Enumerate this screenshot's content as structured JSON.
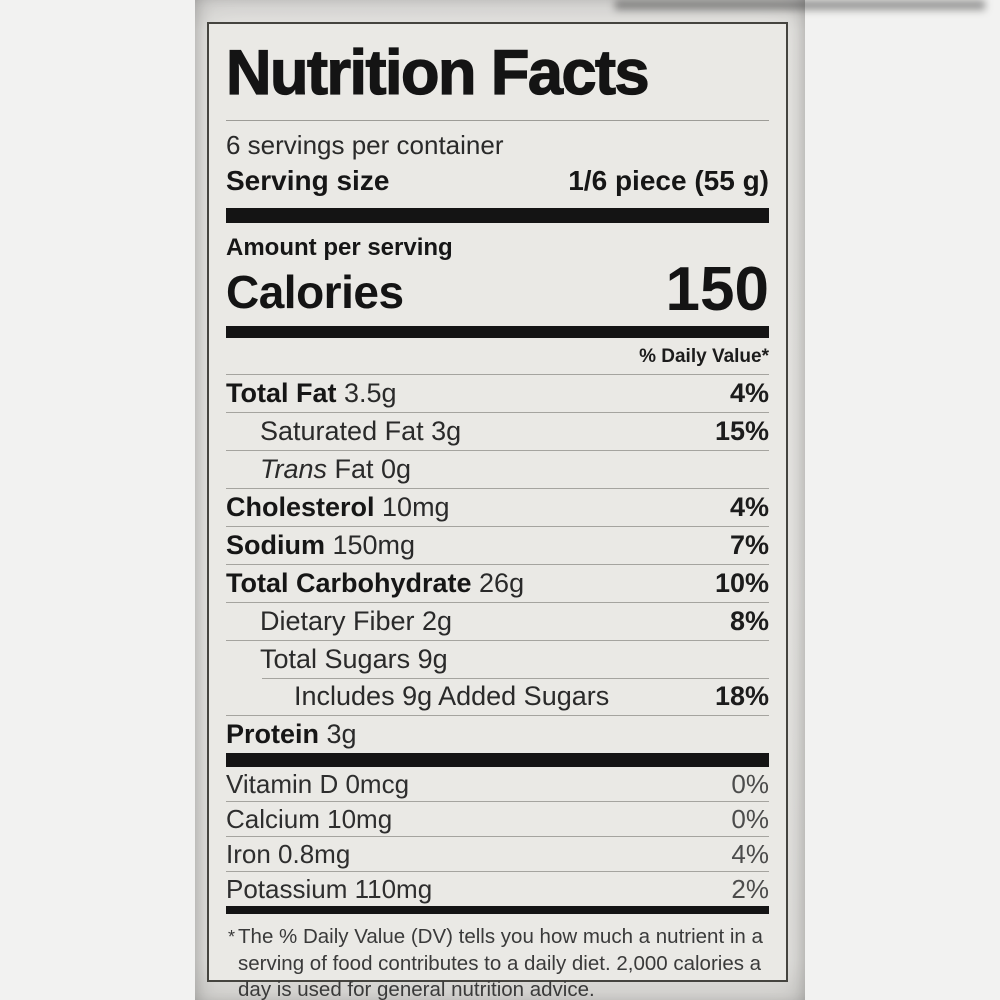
{
  "label": {
    "title": "Nutrition Facts",
    "servings_per_container": "6 servings per container",
    "serving_size_label": "Serving size",
    "serving_size_value": "1/6 piece (55 g)",
    "amount_per_serving": "Amount per serving",
    "calories_label": "Calories",
    "calories_value": "150",
    "daily_value_header": "% Daily Value*",
    "nutrients": [
      {
        "bold": "Total Fat",
        "rest": " 3.5g",
        "dv": "4%"
      },
      {
        "rest": "Saturated Fat 3g",
        "dv": "15%"
      },
      {
        "italic": "Trans",
        "rest": " Fat 0g",
        "dv": ""
      },
      {
        "bold": "Cholesterol",
        "rest": " 10mg",
        "dv": "4%"
      },
      {
        "bold": "Sodium",
        "rest": " 150mg",
        "dv": "7%"
      },
      {
        "bold": "Total Carbohydrate",
        "rest": " 26g",
        "dv": "10%"
      },
      {
        "rest": "Dietary Fiber 2g",
        "dv": "8%"
      },
      {
        "rest": "Total Sugars 9g",
        "dv": ""
      },
      {
        "rest": "Includes 9g Added Sugars",
        "dv": "18%"
      },
      {
        "bold": "Protein",
        "rest": " 3g",
        "dv": ""
      }
    ],
    "micronutrients": [
      {
        "text": "Vitamin D 0mcg",
        "dv": "0%"
      },
      {
        "text": "Calcium 10mg",
        "dv": "0%"
      },
      {
        "text": "Iron 0.8mg",
        "dv": "4%"
      },
      {
        "text": "Potassium 110mg",
        "dv": "2%"
      }
    ],
    "footnote_marker": "*",
    "footnote": "The % Daily Value (DV) tells you how much a nutrient in a serving of food contributes to a daily diet. 2,000 calories a day is used for general nutrition advice."
  }
}
